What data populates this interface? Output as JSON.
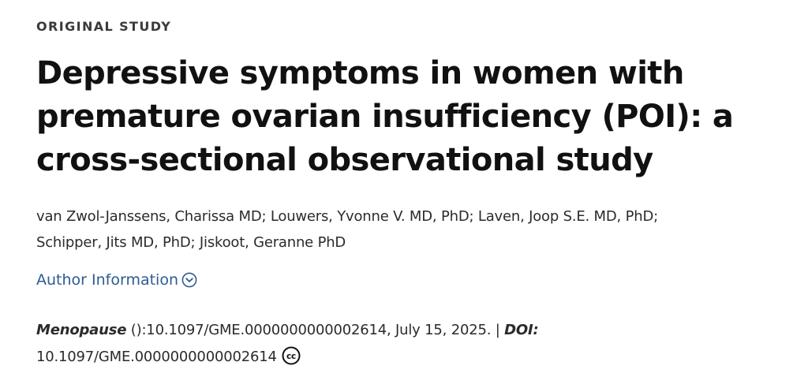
{
  "article": {
    "type_label": "ORIGINAL STUDY",
    "title": "Depressive symptoms in women with premature ovarian insufficiency (POI): a cross-sectional observational study",
    "authors_line1": "van Zwol-Janssens, Charissa MD; Louwers, Yvonne V. MD, PhD; Laven, Joop S.E. MD, PhD;",
    "authors_line2": "Schipper, Jits MD, PhD; Jiskoot, Geranne PhD",
    "author_info_label": "Author Information",
    "citation": {
      "journal": "Menopause",
      "details": " ():10.1097/GME.0000000000002614, July 15, 2025. | ",
      "doi_label": "DOI:",
      "doi_value": "10.1097/GME.0000000000002614"
    }
  },
  "colors": {
    "link": "#2e5b93",
    "text": "#2b2b2b",
    "title": "#111111"
  },
  "icons": {
    "author_info": "chevron-down-circle-icon",
    "license": "creative-commons-icon"
  }
}
